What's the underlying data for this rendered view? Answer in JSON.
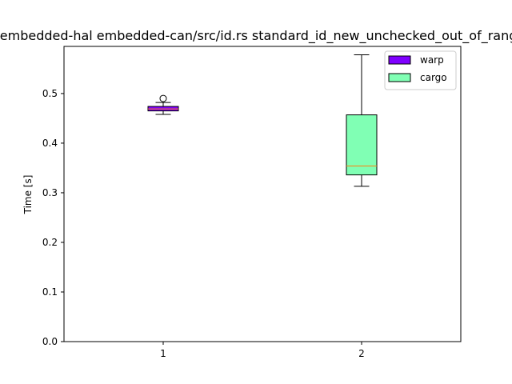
{
  "chart_data": {
    "type": "box",
    "title": "embedded-hal embedded-can/src/id.rs standard_id_new_unchecked_out_of_range",
    "xlabel": "",
    "ylabel": "Time [s]",
    "ylim": [
      0.0,
      0.595
    ],
    "xlim": [
      0.5,
      2.5
    ],
    "x_ticks": [
      "1",
      "2"
    ],
    "y_ticks": [
      "0.0",
      "0.1",
      "0.2",
      "0.3",
      "0.4",
      "0.5"
    ],
    "legend_position": "top-right",
    "series": [
      {
        "name": "warp",
        "position": 1,
        "color": "#7f00ff",
        "median_color": "#ff7f0e",
        "whisker_low": 0.458,
        "q1": 0.465,
        "median": 0.469,
        "q3": 0.474,
        "whisker_high": 0.482,
        "outliers": [
          0.49
        ]
      },
      {
        "name": "cargo",
        "position": 2,
        "color": "#80ffb4",
        "median_color": "#ff7f0e",
        "whisker_low": 0.313,
        "q1": 0.336,
        "median": 0.354,
        "q3": 0.457,
        "whisker_high": 0.578,
        "outliers": []
      }
    ]
  }
}
